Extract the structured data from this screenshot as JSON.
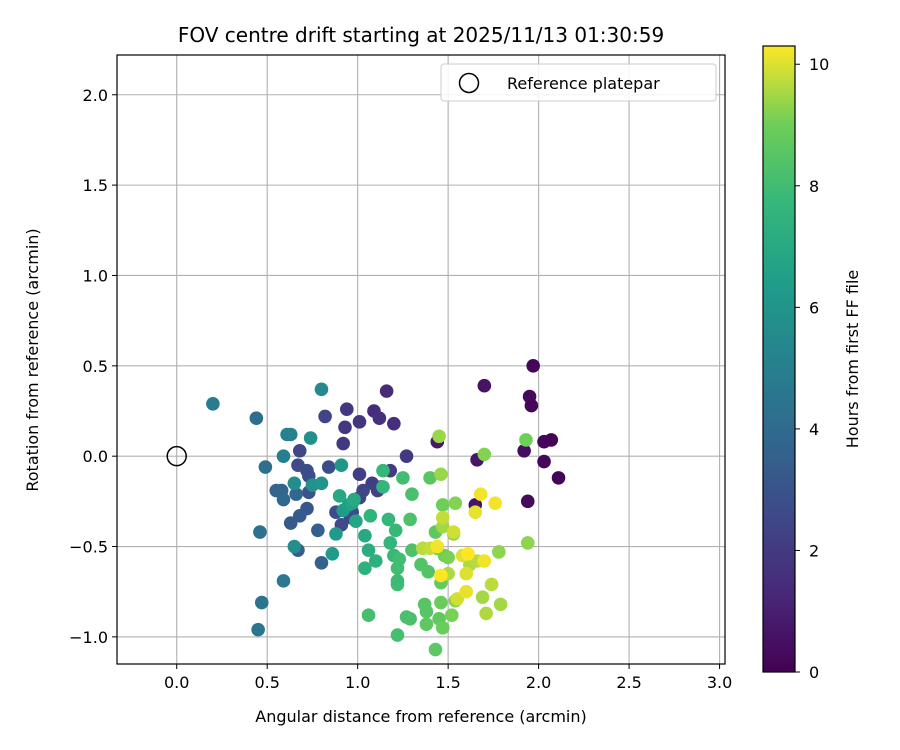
{
  "chart_data": {
    "type": "scatter",
    "title": "FOV centre drift starting at 2025/11/13 01:30:59",
    "xlabel": "Angular distance from reference (arcmin)",
    "ylabel": "Rotation from reference (arcmin)",
    "xlim": [
      -0.33,
      3.03
    ],
    "ylim": [
      -1.15,
      2.22
    ],
    "xticks": [
      0.0,
      0.5,
      1.0,
      1.5,
      2.0,
      2.5,
      3.0
    ],
    "xtick_labels": [
      "0.0",
      "0.5",
      "1.0",
      "1.5",
      "2.0",
      "2.5",
      "3.0"
    ],
    "yticks": [
      -1.0,
      -0.5,
      0.0,
      0.5,
      1.0,
      1.5,
      2.0
    ],
    "ytick_labels": [
      "−1.0",
      "−0.5",
      "0.0",
      "0.5",
      "1.0",
      "1.5",
      "2.0"
    ],
    "grid": true,
    "colormap": "viridis",
    "colorbar": {
      "label": "Hours from first FF file",
      "min": 0,
      "max": 10.3,
      "ticks": [
        0,
        2,
        4,
        6,
        8,
        10
      ],
      "tick_labels": [
        "0",
        "2",
        "4",
        "6",
        "8",
        "10"
      ]
    },
    "reference": {
      "name": "Reference platepar",
      "x": 0.0,
      "y": 0.0
    },
    "legend": {
      "position": "top-right",
      "entries": [
        "Reference platepar"
      ]
    },
    "points": [
      [
        1.97,
        0.5,
        0.2
      ],
      [
        1.95,
        0.33,
        0.3
      ],
      [
        1.96,
        0.28,
        0.2
      ],
      [
        1.7,
        0.39,
        0.6
      ],
      [
        2.07,
        0.09,
        0.1
      ],
      [
        2.03,
        0.08,
        0.2
      ],
      [
        1.92,
        0.03,
        0.4
      ],
      [
        2.03,
        -0.03,
        0.2
      ],
      [
        2.11,
        -0.12,
        0.1
      ],
      [
        1.94,
        -0.25,
        0.3
      ],
      [
        1.44,
        0.08,
        0.8
      ],
      [
        1.66,
        -0.02,
        0.7
      ],
      [
        1.65,
        -0.27,
        0.6
      ],
      [
        1.16,
        0.36,
        1.4
      ],
      [
        1.09,
        0.25,
        1.5
      ],
      [
        1.12,
        0.21,
        1.6
      ],
      [
        1.2,
        0.18,
        1.6
      ],
      [
        1.01,
        0.19,
        1.8
      ],
      [
        0.94,
        0.26,
        1.9
      ],
      [
        0.93,
        0.16,
        1.9
      ],
      [
        0.92,
        0.07,
        2.0
      ],
      [
        1.27,
        0.0,
        2.0
      ],
      [
        1.18,
        -0.08,
        2.1
      ],
      [
        1.01,
        -0.1,
        2.2
      ],
      [
        1.08,
        -0.15,
        2.2
      ],
      [
        1.11,
        -0.19,
        2.3
      ],
      [
        1.13,
        -0.17,
        2.3
      ],
      [
        1.03,
        -0.19,
        2.4
      ],
      [
        1.01,
        -0.23,
        2.4
      ],
      [
        0.96,
        -0.34,
        2.5
      ],
      [
        0.91,
        -0.38,
        2.6
      ],
      [
        0.97,
        -0.31,
        2.6
      ],
      [
        0.88,
        -0.31,
        2.7
      ],
      [
        0.82,
        0.22,
        2.4
      ],
      [
        0.68,
        0.03,
        2.5
      ],
      [
        0.67,
        -0.05,
        2.6
      ],
      [
        0.72,
        -0.08,
        2.7
      ],
      [
        0.73,
        -0.11,
        2.8
      ],
      [
        0.84,
        -0.06,
        2.8
      ],
      [
        0.73,
        -0.2,
        3.0
      ],
      [
        0.72,
        -0.29,
        3.1
      ],
      [
        0.63,
        -0.37,
        3.2
      ],
      [
        0.68,
        -0.33,
        3.3
      ],
      [
        0.67,
        -0.52,
        3.4
      ],
      [
        0.78,
        -0.41,
        3.5
      ],
      [
        0.8,
        -0.59,
        3.6
      ],
      [
        0.58,
        -0.19,
        3.7
      ],
      [
        0.55,
        -0.19,
        3.8
      ],
      [
        0.59,
        -0.24,
        3.9
      ],
      [
        0.66,
        -0.21,
        3.9
      ],
      [
        0.44,
        0.21,
        4.1
      ],
      [
        0.49,
        -0.06,
        4.2
      ],
      [
        0.46,
        -0.42,
        4.3
      ],
      [
        0.47,
        -0.81,
        4.4
      ],
      [
        0.45,
        -0.96,
        4.5
      ],
      [
        0.59,
        -0.69,
        4.7
      ],
      [
        0.2,
        0.29,
        4.8
      ],
      [
        0.59,
        0.0,
        5.0
      ],
      [
        0.61,
        0.12,
        5.1
      ],
      [
        0.63,
        0.12,
        5.2
      ],
      [
        0.8,
        0.37,
        5.5
      ],
      [
        0.74,
        0.1,
        5.8
      ],
      [
        0.65,
        -0.15,
        5.6
      ],
      [
        0.65,
        -0.5,
        5.7
      ],
      [
        0.75,
        -0.16,
        5.9
      ],
      [
        0.8,
        -0.15,
        6.0
      ],
      [
        0.91,
        -0.05,
        6.1
      ],
      [
        0.86,
        -0.54,
        6.3
      ],
      [
        0.88,
        -0.43,
        6.3
      ],
      [
        0.92,
        -0.3,
        6.4
      ],
      [
        0.95,
        -0.27,
        6.5
      ],
      [
        0.97,
        -0.26,
        6.7
      ],
      [
        0.99,
        -0.36,
        6.8
      ],
      [
        0.9,
        -0.22,
        6.9
      ],
      [
        0.98,
        -0.24,
        7.0
      ],
      [
        1.04,
        -0.44,
        7.0
      ],
      [
        1.06,
        -0.52,
        7.2
      ],
      [
        1.1,
        -0.58,
        7.3
      ],
      [
        1.04,
        -0.62,
        7.4
      ],
      [
        1.07,
        -0.33,
        7.5
      ],
      [
        1.14,
        -0.17,
        7.6
      ],
      [
        1.18,
        -0.48,
        7.6
      ],
      [
        1.14,
        -0.08,
        7.7
      ],
      [
        1.17,
        -0.35,
        7.7
      ],
      [
        1.2,
        -0.55,
        7.8
      ],
      [
        1.21,
        -0.41,
        7.8
      ],
      [
        1.22,
        -0.69,
        7.9
      ],
      [
        1.22,
        -0.71,
        7.9
      ],
      [
        1.23,
        -0.57,
        8.0
      ],
      [
        1.25,
        -0.12,
        8.0
      ],
      [
        1.22,
        -0.62,
        8.0
      ],
      [
        1.22,
        -0.99,
        8.1
      ],
      [
        1.06,
        -0.88,
        8.1
      ],
      [
        1.27,
        -0.89,
        8.2
      ],
      [
        1.29,
        -0.9,
        8.2
      ],
      [
        1.3,
        -0.21,
        8.2
      ],
      [
        1.3,
        -0.52,
        8.3
      ],
      [
        1.29,
        -0.35,
        8.3
      ],
      [
        1.35,
        -0.6,
        8.4
      ],
      [
        1.39,
        -0.64,
        8.4
      ],
      [
        1.38,
        -0.86,
        8.5
      ],
      [
        1.37,
        -0.82,
        8.5
      ],
      [
        1.4,
        -0.12,
        8.5
      ],
      [
        1.38,
        -0.93,
        8.6
      ],
      [
        1.43,
        -1.07,
        8.6
      ],
      [
        1.43,
        -0.42,
        8.7
      ],
      [
        1.45,
        -0.9,
        8.7
      ],
      [
        1.44,
        -0.51,
        8.8
      ],
      [
        1.46,
        -0.7,
        8.8
      ],
      [
        1.46,
        -0.81,
        8.9
      ],
      [
        1.47,
        -0.95,
        8.9
      ],
      [
        1.47,
        -0.27,
        9.0
      ],
      [
        1.48,
        -0.55,
        9.0
      ],
      [
        1.5,
        -0.56,
        9.1
      ],
      [
        1.52,
        -0.88,
        9.1
      ],
      [
        1.54,
        -0.8,
        9.2
      ],
      [
        1.54,
        -0.26,
        9.2
      ],
      [
        1.53,
        -0.43,
        9.3
      ],
      [
        1.45,
        0.11,
        9.4
      ],
      [
        1.46,
        -0.1,
        9.4
      ],
      [
        1.47,
        -0.39,
        9.5
      ],
      [
        1.5,
        -0.65,
        9.6
      ],
      [
        1.62,
        -0.6,
        9.6
      ],
      [
        1.66,
        -0.58,
        9.7
      ],
      [
        1.7,
        0.01,
        9.2
      ],
      [
        1.69,
        -0.78,
        9.5
      ],
      [
        1.71,
        -0.87,
        9.6
      ],
      [
        1.74,
        -0.71,
        9.7
      ],
      [
        1.78,
        -0.53,
        9.3
      ],
      [
        1.79,
        -0.82,
        9.5
      ],
      [
        1.93,
        0.09,
        9.0
      ],
      [
        1.94,
        -0.48,
        9.3
      ],
      [
        1.36,
        -0.51,
        9.7
      ],
      [
        1.4,
        -0.51,
        9.8
      ],
      [
        1.47,
        -0.34,
        9.8
      ],
      [
        1.53,
        -0.42,
        9.9
      ],
      [
        1.55,
        -0.79,
        9.9
      ],
      [
        1.58,
        -0.55,
        10.0
      ],
      [
        1.6,
        -0.65,
        10.0
      ],
      [
        1.6,
        -0.75,
        10.1
      ],
      [
        1.65,
        -0.31,
        10.1
      ],
      [
        1.68,
        -0.21,
        10.2
      ],
      [
        1.7,
        -0.58,
        10.2
      ],
      [
        1.76,
        -0.26,
        10.2
      ],
      [
        1.61,
        -0.54,
        10.3
      ],
      [
        1.46,
        -0.66,
        10.3
      ],
      [
        1.44,
        -0.5,
        10.2
      ]
    ]
  }
}
